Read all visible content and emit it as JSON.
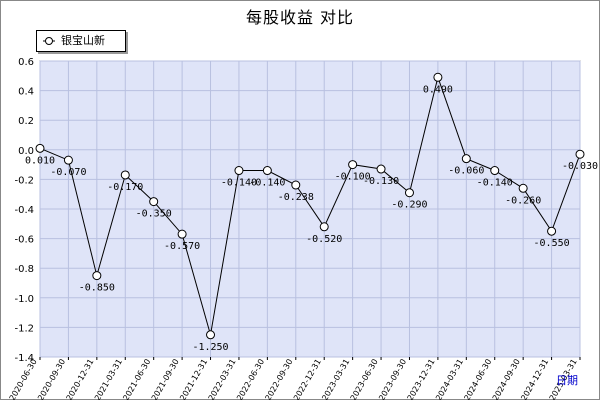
{
  "chart_data": {
    "type": "line",
    "title": "每股收益  对比",
    "xlabel": "日期",
    "ylabel": "",
    "ylim": [
      -1.4,
      0.6
    ],
    "yticks": [
      0.6,
      0.4,
      0.2,
      0.0,
      -0.2,
      -0.4,
      -0.6,
      -0.8,
      -1.0,
      -1.2,
      -1.4
    ],
    "ytick_labels": [
      "0.6",
      "0.4",
      "0.2",
      "0.0",
      "-0.2",
      "-0.4",
      "-0.6",
      "-0.8",
      "-1.0",
      "-1.2",
      "-1.4"
    ],
    "grid": true,
    "legend_position": "top-left",
    "colors": {
      "background": "#dfe4f8",
      "line": "#000000",
      "grid": "#b8c0e0"
    },
    "categories": [
      "2020-06-30",
      "2020-09-30",
      "2020-12-31",
      "2021-03-31",
      "2021-06-30",
      "2021-09-30",
      "2021-12-31",
      "2022-03-31",
      "2022-06-30",
      "2022-09-30",
      "2022-12-31",
      "2023-03-31",
      "2023-06-30",
      "2023-09-30",
      "2023-12-31",
      "2024-03-31",
      "2024-06-30",
      "2024-09-30",
      "2024-12-31",
      "2025-03-31"
    ],
    "series": [
      {
        "name": "银宝山新",
        "values": [
          0.01,
          -0.07,
          -0.85,
          -0.17,
          -0.35,
          -0.57,
          -1.25,
          -0.14,
          -0.14,
          -0.238,
          -0.52,
          -0.1,
          -0.13,
          -0.29,
          0.49,
          -0.06,
          -0.14,
          -0.26,
          -0.55,
          -0.03
        ],
        "labels": [
          "0.010",
          "-0.070",
          "-0.850",
          "-0.170",
          "-0.350",
          "-0.570",
          "-1.250",
          "-0.140",
          "-0.140",
          "-0.238",
          "-0.520",
          "-0.100",
          "-0.130",
          "-0.290",
          "0.490",
          "-0.060",
          "-0.140",
          "-0.260",
          "-0.550",
          "-0.030"
        ]
      }
    ]
  }
}
